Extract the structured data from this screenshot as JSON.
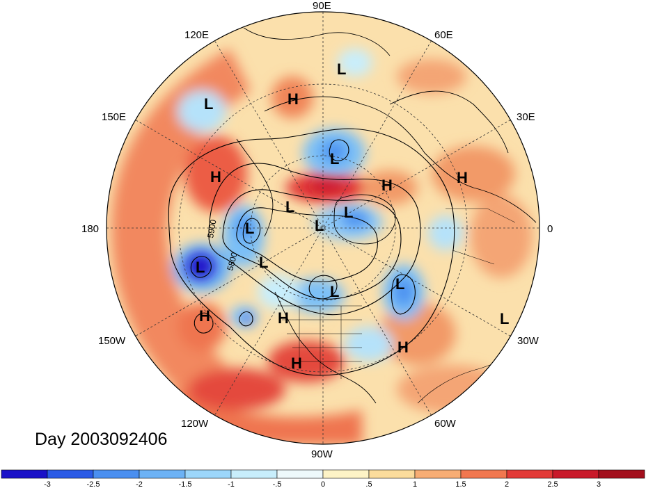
{
  "title": "Day 2003092406",
  "longitude_labels": [
    "90E",
    "60E",
    "30E",
    "0",
    "30W",
    "60W",
    "90W",
    "120W",
    "150W",
    "180",
    "150E",
    "120E"
  ],
  "contour_labels": [
    "5900",
    "5800"
  ],
  "pressure_centers": [
    {
      "type": "L"
    },
    {
      "type": "H"
    },
    {
      "type": "L"
    },
    {
      "type": "L"
    },
    {
      "type": "H"
    },
    {
      "type": "H"
    },
    {
      "type": "H"
    },
    {
      "type": "L"
    },
    {
      "type": "L"
    },
    {
      "type": "L"
    },
    {
      "type": "L"
    },
    {
      "type": "L"
    },
    {
      "type": "L"
    },
    {
      "type": "L"
    },
    {
      "type": "L"
    },
    {
      "type": "H"
    },
    {
      "type": "H"
    },
    {
      "type": "L"
    },
    {
      "type": "H"
    },
    {
      "type": "H"
    }
  ],
  "colorbar": {
    "labels": [
      "-3",
      "-2.5",
      "-2",
      "-1.5",
      "-1",
      "-.5",
      "0",
      ".5",
      "1",
      "1.5",
      "2",
      "2.5",
      "3"
    ],
    "colors": [
      "#1a11c8",
      "#2a5ae6",
      "#4a8ff0",
      "#6cb2f5",
      "#9cd6fa",
      "#c8eefc",
      "#eef9fb",
      "#fdf3c6",
      "#fbdc9c",
      "#f7ad74",
      "#f1774f",
      "#e33a37",
      "#c9192a",
      "#a30f1d"
    ]
  }
}
